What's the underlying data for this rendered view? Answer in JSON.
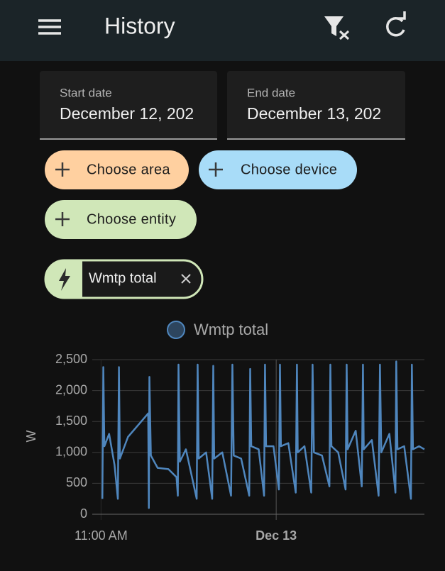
{
  "header": {
    "title": "History"
  },
  "date_range": {
    "start_label": "Start date",
    "start_value": "December 12, 202",
    "end_label": "End date",
    "end_value": "December 13, 202"
  },
  "target_picker": {
    "chips": [
      "Choose area",
      "Choose device",
      "Choose entity"
    ],
    "selected": "Wmtp total"
  },
  "chart_data": {
    "type": "line",
    "y_label": "W",
    "grid": true,
    "x": [
      11.1,
      11.17,
      11.25,
      11.6,
      12.0,
      12.25,
      12.33,
      12.4,
      13.0,
      14.5,
      14.55,
      14.59,
      14.7,
      15.2,
      16.0,
      16.6,
      16.7,
      16.75,
      16.85,
      17.3,
      18.1,
      18.17,
      18.25,
      18.8,
      19.25,
      19.33,
      19.4,
      20.0,
      20.65,
      20.75,
      20.85,
      21.4,
      22.0,
      22.07,
      22.15,
      22.7,
      23.1,
      23.17,
      23.25,
      23.8,
      24.2,
      24.28,
      24.35,
      24.9,
      25.45,
      25.54,
      25.6,
      26.1,
      26.6,
      26.7,
      26.8,
      27.4,
      27.95,
      28.02,
      28.1,
      28.6,
      29.15,
      29.23,
      29.3,
      29.9,
      30.35,
      30.44,
      30.5,
      31.1,
      31.6,
      31.7,
      31.8,
      32.4,
      32.85,
      32.91,
      33.0,
      33.5,
      34.0,
      34.07,
      34.15,
      34.6,
      35.0
    ],
    "series": [
      {
        "name": "Wmtp total",
        "color": "#4f86bd",
        "values": [
          250,
          2380,
          1100,
          1300,
          800,
          250,
          2380,
          900,
          1250,
          1630,
          100,
          2220,
          950,
          750,
          730,
          600,
          300,
          2420,
          850,
          1050,
          250,
          2420,
          900,
          1000,
          250,
          2400,
          900,
          1000,
          300,
          2420,
          950,
          900,
          300,
          2350,
          1100,
          1050,
          300,
          2420,
          1100,
          1100,
          400,
          2420,
          1100,
          1150,
          350,
          2420,
          1000,
          1100,
          350,
          2420,
          1000,
          950,
          450,
          2420,
          1100,
          1000,
          400,
          2420,
          1050,
          1350,
          450,
          2420,
          1050,
          1200,
          300,
          2420,
          1000,
          1300,
          350,
          2470,
          1050,
          1100,
          250,
          2420,
          1050,
          1100,
          1050
        ]
      }
    ],
    "xlim": [
      10.35,
      35
    ],
    "xticks": [
      {
        "value": 11,
        "label": "11:00 AM"
      },
      {
        "value": 24,
        "label": "Dec 13"
      }
    ],
    "ylim": [
      0,
      2500
    ],
    "yticks": [
      0,
      500,
      {
        "value": 1000,
        "label": "1,000"
      },
      {
        "value": 1500,
        "label": "1,500"
      },
      {
        "value": 2000,
        "label": "2,000"
      },
      {
        "value": 2500,
        "label": "2,500"
      }
    ]
  }
}
